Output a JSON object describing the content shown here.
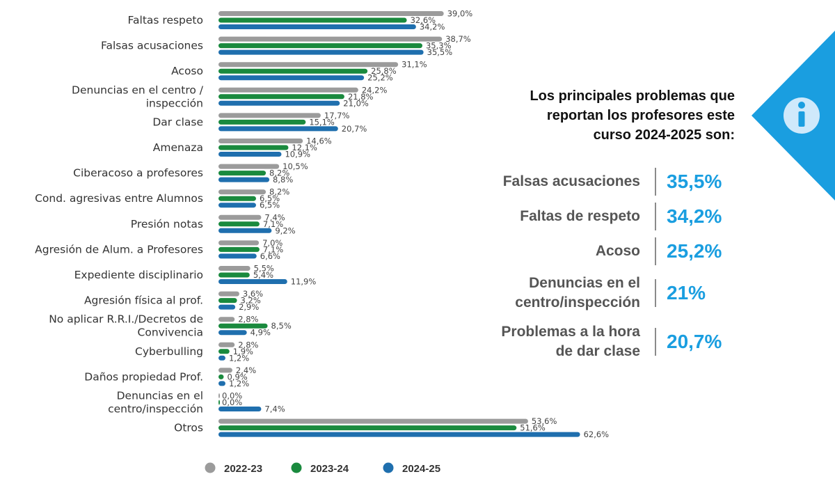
{
  "chart_data": {
    "type": "bar",
    "orientation": "horizontal",
    "categories": [
      [
        "Faltas respeto"
      ],
      [
        "Falsas acusaciones"
      ],
      [
        "Acoso"
      ],
      [
        "Denuncias en el centro /",
        "inspección"
      ],
      [
        "Dar clase"
      ],
      [
        "Amenaza"
      ],
      [
        "Ciberacoso a profesores"
      ],
      [
        "Cond. agresivas entre Alumnos"
      ],
      [
        "Presión notas"
      ],
      [
        "Agresión de Alum. a Profesores"
      ],
      [
        "Expediente disciplinario"
      ],
      [
        "Agresión física al prof."
      ],
      [
        "No aplicar R.R.I./Decretos de",
        "Convivencia"
      ],
      [
        "Cyberbulling"
      ],
      [
        "Daños propiedad Prof."
      ],
      [
        "Denuncias en el",
        "centro/inspección"
      ],
      [
        "Otros"
      ]
    ],
    "series": [
      {
        "name": "2022-23",
        "color": "#9b9b9b",
        "values": [
          39.0,
          38.7,
          31.1,
          24.2,
          17.7,
          14.6,
          10.5,
          8.2,
          7.4,
          7.0,
          5.5,
          3.6,
          2.8,
          2.8,
          2.4,
          0.0,
          53.6
        ],
        "labels": [
          "39,0%",
          "38,7%",
          "31,1%",
          "24,2%",
          "17,7%",
          "14,6%",
          "10,5%",
          "8,2%",
          "7,4%",
          "7,0%",
          "5,5%",
          "3,6%",
          "2,8%",
          "2,8%",
          "2,4%",
          "0,0%",
          "53,6%"
        ]
      },
      {
        "name": "2023-24",
        "color": "#1a8a3e",
        "values": [
          32.6,
          35.3,
          25.8,
          21.8,
          15.1,
          12.1,
          8.2,
          6.5,
          7.1,
          7.1,
          5.4,
          3.2,
          8.5,
          1.9,
          0.9,
          0.0,
          51.6
        ],
        "labels": [
          "32,6%",
          "35,3%",
          "25,8%",
          "21,8%",
          "15,1%",
          "12,1%",
          "8,2%",
          "6,5%",
          "7,1%",
          "7,1%",
          "5,4%",
          "3,2%",
          "8,5%",
          "1,9%",
          "0,9%",
          "0,0%",
          "51,6%"
        ]
      },
      {
        "name": "2024-25",
        "color": "#1f6fae",
        "values": [
          34.2,
          35.5,
          25.2,
          21.0,
          20.7,
          10.9,
          8.8,
          6.5,
          9.2,
          6.6,
          11.9,
          2.9,
          4.9,
          1.2,
          1.2,
          7.4,
          62.6
        ],
        "labels": [
          "34,2%",
          "35,5%",
          "25,2%",
          "21,0%",
          "20,7%",
          "10,9%",
          "8,8%",
          "6,5%",
          "9,2%",
          "6,6%",
          "11,9%",
          "2,9%",
          "4,9%",
          "1,2%",
          "1,2%",
          "7,4%",
          "62,6%"
        ]
      }
    ],
    "xlim": [
      0,
      62.6
    ],
    "legend": {
      "placement": "bottom-center",
      "entries": [
        "2022-23",
        "2023-24",
        "2024-25"
      ]
    },
    "grid": false
  },
  "panel": {
    "title_lines": [
      "Los principales problemas que",
      "reportan los profesores este",
      "curso 2024-2025 son:"
    ],
    "info_icon": "info-icon",
    "highlights": [
      {
        "label_lines": [
          "Falsas acusaciones"
        ],
        "value": "35,5%"
      },
      {
        "label_lines": [
          "Faltas de respeto"
        ],
        "value": "34,2%"
      },
      {
        "label_lines": [
          "Acoso"
        ],
        "value": "25,2%"
      },
      {
        "label_lines": [
          "Denuncias en el",
          "centro/inspección"
        ],
        "value": "21%"
      },
      {
        "label_lines": [
          "Problemas a la hora",
          "de dar clase"
        ],
        "value": "20,7%"
      }
    ]
  },
  "colors": {
    "accent": "#1a9ee0",
    "gray": "#9b9b9b",
    "green": "#1a8a3e",
    "blue": "#1f6fae"
  }
}
